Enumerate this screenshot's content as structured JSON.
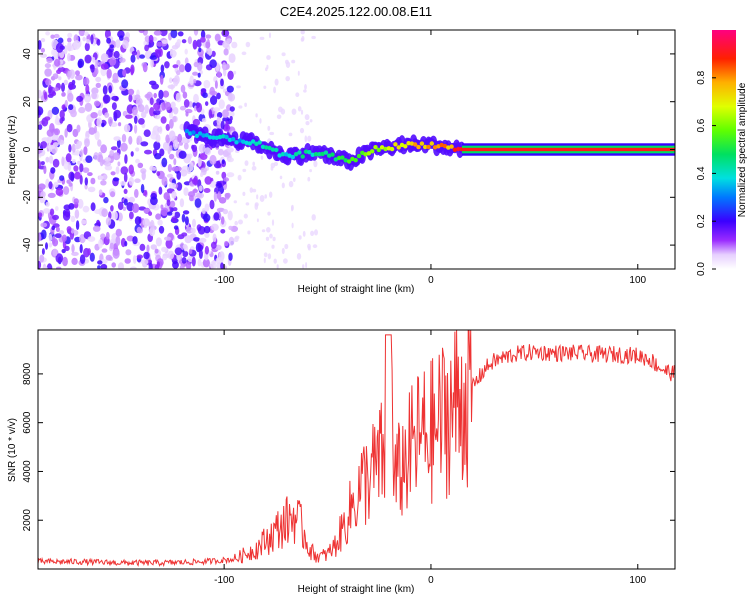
{
  "figure": {
    "title": "C2E4.2025.122.00.08.E11"
  },
  "chart_data": [
    {
      "type": "heatmap",
      "title": "C2E4.2025.122.00.08.E11",
      "xlabel": "Height of straight line (km)",
      "ylabel": "Frequency (Hz)",
      "xlim": [
        -190,
        118
      ],
      "ylim": [
        -50,
        50
      ],
      "xticks": [
        -100,
        0,
        100
      ],
      "xtick_labels": [
        "-100",
        "0",
        "100"
      ],
      "yticks": [
        -40,
        -20,
        0,
        20,
        40
      ],
      "ytick_labels": [
        "-40",
        "-20",
        "0",
        "20",
        "40"
      ],
      "colorbar": {
        "label": "Normalized spectral amplitude",
        "range": [
          0,
          1
        ],
        "ticks": [
          0,
          0.2,
          0.4,
          0.6,
          0.8
        ],
        "tick_labels": [
          "0.0",
          "0.2",
          "0.4",
          "0.6",
          "0.8"
        ]
      },
      "signal_track": {
        "description_points": [
          {
            "x": -115,
            "y": 7,
            "amp": 0.35
          },
          {
            "x": -105,
            "y": 5,
            "amp": 0.4
          },
          {
            "x": -95,
            "y": 4,
            "amp": 0.35
          },
          {
            "x": -85,
            "y": 3,
            "amp": 0.4
          },
          {
            "x": -78,
            "y": 0,
            "amp": 0.45
          },
          {
            "x": -70,
            "y": -3,
            "amp": 0.4
          },
          {
            "x": -62,
            "y": -2,
            "amp": 0.45
          },
          {
            "x": -55,
            "y": -1,
            "amp": 0.45
          },
          {
            "x": -48,
            "y": -3,
            "amp": 0.5
          },
          {
            "x": -40,
            "y": -5,
            "amp": 0.55
          },
          {
            "x": -35,
            "y": -3,
            "amp": 0.6
          },
          {
            "x": -28,
            "y": 0,
            "amp": 0.65
          },
          {
            "x": -20,
            "y": 1,
            "amp": 0.7
          },
          {
            "x": -10,
            "y": 2,
            "amp": 0.75
          },
          {
            "x": 0,
            "y": 2,
            "amp": 0.8
          },
          {
            "x": 8,
            "y": 1,
            "amp": 0.85
          },
          {
            "x": 15,
            "y": 0,
            "amp": 0.95
          },
          {
            "x": 118,
            "y": 0,
            "amp": 0.95
          }
        ]
      }
    },
    {
      "type": "line",
      "xlabel": "Height of straight line (km)",
      "ylabel": "SNR (10 * v/v)",
      "xlim": [
        -190,
        118
      ],
      "ylim": [
        0,
        9800
      ],
      "xticks": [
        -100,
        0,
        100
      ],
      "xtick_labels": [
        "-100",
        "0",
        "100"
      ],
      "yticks": [
        2000,
        4000,
        6000,
        8000
      ],
      "ytick_labels": [
        "2000",
        "4000",
        "6000",
        "8000"
      ],
      "color": "#ee3333",
      "series": [
        {
          "name": "SNR",
          "x": [
            -190,
            -170,
            -150,
            -130,
            -110,
            -95,
            -85,
            -78,
            -72,
            -66,
            -62,
            -58,
            -54,
            -50,
            -46,
            -42,
            -38,
            -34,
            -30,
            -26,
            -22,
            -20,
            -18,
            -14,
            -10,
            -6,
            -2,
            2,
            6,
            10,
            14,
            18,
            22,
            26,
            30,
            40,
            50,
            60,
            70,
            80,
            90,
            100,
            106,
            110,
            114,
            118
          ],
          "y": [
            300,
            300,
            250,
            250,
            300,
            400,
            800,
            1300,
            1800,
            2200,
            1600,
            700,
            500,
            600,
            1000,
            1800,
            2600,
            3400,
            3800,
            4200,
            4800,
            9600,
            3500,
            4200,
            4800,
            5400,
            5500,
            5700,
            6200,
            6600,
            6900,
            7300,
            7700,
            8200,
            8500,
            8800,
            8900,
            8850,
            8850,
            8800,
            8800,
            8750,
            8600,
            8300,
            8100,
            8000
          ]
        }
      ]
    }
  ]
}
